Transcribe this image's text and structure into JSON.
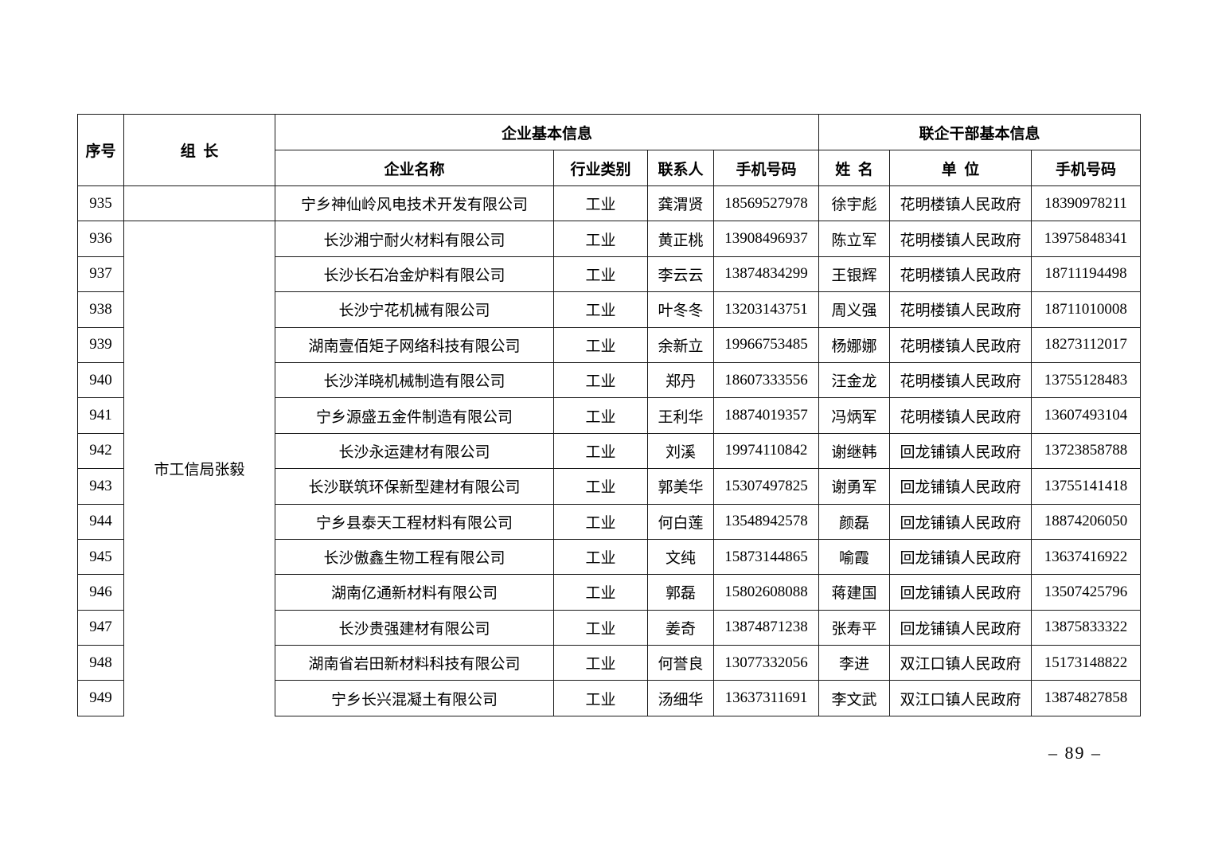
{
  "page": {
    "number_label": "–  89  –"
  },
  "table": {
    "headers": {
      "serial": "序号",
      "leader": "组  长",
      "enterprise_group": "企业基本信息",
      "cadre_group": "联企干部基本信息",
      "enterprise_name": "企业名称",
      "industry": "行业类别",
      "contact": "联系人",
      "contact_phone": "手机号码",
      "cadre_name": "姓  名",
      "cadre_unit": "单  位",
      "cadre_phone": "手机号码"
    },
    "rows": [
      {
        "no": "935",
        "leader": "",
        "leader_span": 1,
        "company": "宁乡神仙岭风电技术开发有限公司",
        "industry": "工业",
        "contact": "龚渭贤",
        "contact_phone": "18569527978",
        "cadre": "徐宇彪",
        "unit": "花明楼镇人民政府",
        "cadre_phone": "18390978211"
      },
      {
        "no": "936",
        "leader": "市工信局张毅",
        "leader_span": 14,
        "leader_continues": true,
        "company": "长沙湘宁耐火材料有限公司",
        "industry": "工业",
        "contact": "黄正桃",
        "contact_phone": "13908496937",
        "cadre": "陈立军",
        "unit": "花明楼镇人民政府",
        "cadre_phone": "13975848341"
      },
      {
        "no": "937",
        "company": "长沙长石冶金炉料有限公司",
        "industry": "工业",
        "contact": "李云云",
        "contact_phone": "13874834299",
        "cadre": "王银辉",
        "unit": "花明楼镇人民政府",
        "cadre_phone": "18711194498"
      },
      {
        "no": "938",
        "company": "长沙宁花机械有限公司",
        "industry": "工业",
        "contact": "叶冬冬",
        "contact_phone": "13203143751",
        "cadre": "周义强",
        "unit": "花明楼镇人民政府",
        "cadre_phone": "18711010008"
      },
      {
        "no": "939",
        "company": "湖南壹佰矩子网络科技有限公司",
        "industry": "工业",
        "contact": "余新立",
        "contact_phone": "19966753485",
        "cadre": "杨娜娜",
        "unit": "花明楼镇人民政府",
        "cadre_phone": "18273112017"
      },
      {
        "no": "940",
        "company": "长沙洋晓机械制造有限公司",
        "industry": "工业",
        "contact": "郑丹",
        "contact_phone": "18607333556",
        "cadre": "汪金龙",
        "unit": "花明楼镇人民政府",
        "cadre_phone": "13755128483"
      },
      {
        "no": "941",
        "company": "宁乡源盛五金件制造有限公司",
        "industry": "工业",
        "contact": "王利华",
        "contact_phone": "18874019357",
        "cadre": "冯炳军",
        "unit": "花明楼镇人民政府",
        "cadre_phone": "13607493104"
      },
      {
        "no": "942",
        "company": "长沙永运建材有限公司",
        "industry": "工业",
        "contact": "刘溪",
        "contact_phone": "19974110842",
        "cadre": "谢继韩",
        "unit": "回龙铺镇人民政府",
        "cadre_phone": "13723858788"
      },
      {
        "no": "943",
        "company": "长沙联筑环保新型建材有限公司",
        "industry": "工业",
        "contact": "郭美华",
        "contact_phone": "15307497825",
        "cadre": "谢勇军",
        "unit": "回龙铺镇人民政府",
        "cadre_phone": "13755141418"
      },
      {
        "no": "944",
        "company": "宁乡县泰天工程材料有限公司",
        "industry": "工业",
        "contact": "何白莲",
        "contact_phone": "13548942578",
        "cadre": "颜磊",
        "unit": "回龙铺镇人民政府",
        "cadre_phone": "18874206050"
      },
      {
        "no": "945",
        "company": "长沙傲鑫生物工程有限公司",
        "industry": "工业",
        "contact": "文纯",
        "contact_phone": "15873144865",
        "cadre": "喻霞",
        "unit": "回龙铺镇人民政府",
        "cadre_phone": "13637416922"
      },
      {
        "no": "946",
        "company": "湖南亿通新材料有限公司",
        "industry": "工业",
        "contact": "郭磊",
        "contact_phone": "15802608088",
        "cadre": "蒋建国",
        "unit": "回龙铺镇人民政府",
        "cadre_phone": "13507425796"
      },
      {
        "no": "947",
        "company": "长沙贵强建材有限公司",
        "industry": "工业",
        "contact": "姜奇",
        "contact_phone": "13874871238",
        "cadre": "张寿平",
        "unit": "回龙铺镇人民政府",
        "cadre_phone": "13875833322"
      },
      {
        "no": "948",
        "company": "湖南省岩田新材料科技有限公司",
        "industry": "工业",
        "contact": "何誉良",
        "contact_phone": "13077332056",
        "cadre": "李进",
        "unit": "双江口镇人民政府",
        "cadre_phone": "15173148822"
      },
      {
        "no": "949",
        "company": "宁乡长兴混凝土有限公司",
        "industry": "工业",
        "contact": "汤细华",
        "contact_phone": "13637311691",
        "cadre": "李文武",
        "unit": "双江口镇人民政府",
        "cadre_phone": "13874827858"
      }
    ]
  }
}
